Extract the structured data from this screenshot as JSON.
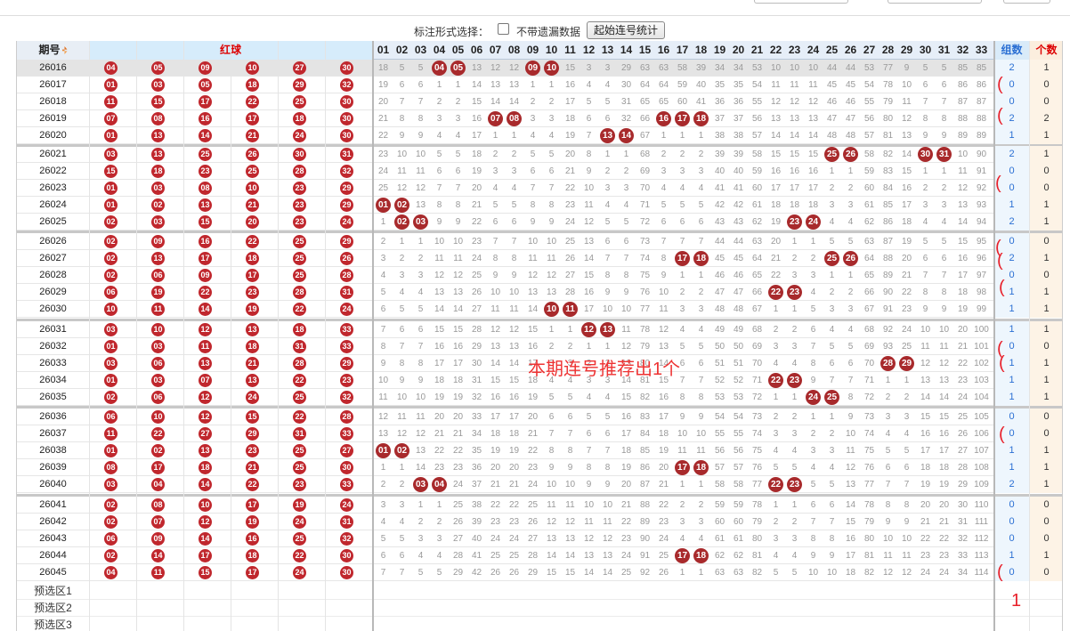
{
  "controls": {
    "label": "标注形式选择：",
    "checkbox_label": "不带遗漏数据",
    "button_label": "起始连号统计"
  },
  "header": {
    "issue": "期号",
    "red": "红球",
    "group": "组数",
    "count": "个数",
    "numbers": [
      "01",
      "02",
      "03",
      "04",
      "05",
      "06",
      "07",
      "08",
      "09",
      "10",
      "11",
      "12",
      "13",
      "14",
      "15",
      "16",
      "17",
      "18",
      "19",
      "20",
      "21",
      "22",
      "23",
      "24",
      "25",
      "26",
      "27",
      "28",
      "29",
      "30",
      "31",
      "32",
      "33"
    ]
  },
  "rows": [
    {
      "issue": "26016",
      "red": [
        "04",
        "05",
        "09",
        "10",
        "27",
        "30"
      ],
      "group": "2",
      "count": "1",
      "om": [
        18,
        5,
        5,
        0,
        0,
        13,
        12,
        12,
        0,
        0,
        15,
        3,
        3,
        29,
        63,
        63,
        58,
        39,
        34,
        34,
        53,
        10,
        10,
        10,
        44,
        44,
        53,
        77,
        9,
        5,
        5,
        85,
        85
      ]
    },
    {
      "issue": "26017",
      "red": [
        "01",
        "03",
        "05",
        "18",
        "29",
        "32"
      ],
      "group": "0",
      "count": "0",
      "om": [
        19,
        6,
        6,
        1,
        1,
        14,
        13,
        13,
        1,
        1,
        16,
        4,
        4,
        30,
        64,
        64,
        59,
        40,
        35,
        35,
        54,
        11,
        11,
        11,
        45,
        45,
        54,
        78,
        10,
        6,
        6,
        86,
        86
      ]
    },
    {
      "issue": "26018",
      "red": [
        "11",
        "15",
        "17",
        "22",
        "25",
        "30"
      ],
      "group": "0",
      "count": "0",
      "om": [
        20,
        7,
        7,
        2,
        2,
        15,
        14,
        14,
        2,
        2,
        17,
        5,
        5,
        31,
        65,
        65,
        60,
        41,
        36,
        36,
        55,
        12,
        12,
        12,
        46,
        46,
        55,
        79,
        11,
        7,
        7,
        87,
        87
      ]
    },
    {
      "issue": "26019",
      "red": [
        "07",
        "08",
        "16",
        "17",
        "18",
        "30"
      ],
      "group": "2",
      "count": "2",
      "om": [
        21,
        8,
        8,
        3,
        3,
        16,
        0,
        0,
        3,
        3,
        18,
        6,
        6,
        32,
        66,
        0,
        0,
        0,
        37,
        37,
        56,
        13,
        13,
        13,
        47,
        47,
        56,
        80,
        12,
        8,
        8,
        88,
        88
      ]
    },
    {
      "issue": "26020",
      "red": [
        "01",
        "13",
        "14",
        "21",
        "24",
        "30"
      ],
      "group": "1",
      "count": "1",
      "om": [
        22,
        9,
        9,
        4,
        4,
        17,
        1,
        1,
        4,
        4,
        19,
        7,
        0,
        0,
        67,
        1,
        1,
        1,
        38,
        38,
        57,
        14,
        14,
        14,
        48,
        48,
        57,
        81,
        13,
        9,
        9,
        89,
        89
      ]
    },
    {
      "issue": "26021",
      "red": [
        "03",
        "13",
        "25",
        "26",
        "30",
        "31"
      ],
      "group": "2",
      "count": "1",
      "om": [
        23,
        10,
        10,
        5,
        5,
        18,
        2,
        2,
        5,
        5,
        20,
        8,
        1,
        1,
        68,
        2,
        2,
        2,
        39,
        39,
        58,
        15,
        15,
        15,
        0,
        0,
        58,
        82,
        14,
        0,
        0,
        10,
        90
      ]
    },
    {
      "issue": "26022",
      "red": [
        "15",
        "18",
        "23",
        "25",
        "28",
        "32"
      ],
      "group": "0",
      "count": "0",
      "om": [
        24,
        11,
        11,
        6,
        6,
        19,
        3,
        3,
        6,
        6,
        21,
        9,
        2,
        2,
        69,
        3,
        3,
        3,
        40,
        40,
        59,
        16,
        16,
        16,
        1,
        1,
        59,
        83,
        15,
        1,
        1,
        11,
        91
      ]
    },
    {
      "issue": "26023",
      "red": [
        "01",
        "03",
        "08",
        "10",
        "23",
        "29"
      ],
      "group": "0",
      "count": "0",
      "om": [
        25,
        12,
        12,
        7,
        7,
        20,
        4,
        4,
        7,
        7,
        22,
        10,
        3,
        3,
        70,
        4,
        4,
        4,
        41,
        41,
        60,
        17,
        17,
        17,
        2,
        2,
        60,
        84,
        16,
        2,
        2,
        12,
        92
      ]
    },
    {
      "issue": "26024",
      "red": [
        "01",
        "02",
        "13",
        "21",
        "23",
        "29"
      ],
      "group": "1",
      "count": "1",
      "om": [
        0,
        0,
        13,
        8,
        8,
        21,
        5,
        5,
        8,
        8,
        23,
        11,
        4,
        4,
        71,
        5,
        5,
        5,
        42,
        42,
        61,
        18,
        18,
        18,
        3,
        3,
        61,
        85,
        17,
        3,
        3,
        13,
        93
      ]
    },
    {
      "issue": "26025",
      "red": [
        "02",
        "03",
        "15",
        "20",
        "23",
        "24"
      ],
      "group": "2",
      "count": "1",
      "om": [
        1,
        0,
        0,
        9,
        9,
        22,
        6,
        6,
        9,
        9,
        24,
        12,
        5,
        5,
        72,
        6,
        6,
        6,
        43,
        43,
        62,
        19,
        0,
        0,
        4,
        4,
        62,
        86,
        18,
        4,
        4,
        14,
        94
      ]
    },
    {
      "issue": "26026",
      "red": [
        "02",
        "09",
        "16",
        "22",
        "25",
        "29"
      ],
      "group": "0",
      "count": "0",
      "om": [
        2,
        1,
        1,
        10,
        10,
        23,
        7,
        7,
        10,
        10,
        25,
        13,
        6,
        6,
        73,
        7,
        7,
        7,
        44,
        44,
        63,
        20,
        1,
        1,
        5,
        5,
        63,
        87,
        19,
        5,
        5,
        15,
        95
      ]
    },
    {
      "issue": "26027",
      "red": [
        "02",
        "13",
        "17",
        "18",
        "25",
        "26"
      ],
      "group": "2",
      "count": "1",
      "om": [
        3,
        2,
        2,
        11,
        11,
        24,
        8,
        8,
        11,
        11,
        26,
        14,
        7,
        7,
        74,
        8,
        0,
        0,
        45,
        45,
        64,
        21,
        2,
        2,
        0,
        0,
        64,
        88,
        20,
        6,
        6,
        16,
        96
      ]
    },
    {
      "issue": "26028",
      "red": [
        "02",
        "06",
        "09",
        "17",
        "25",
        "28"
      ],
      "group": "0",
      "count": "0",
      "om": [
        4,
        3,
        3,
        12,
        12,
        25,
        9,
        9,
        12,
        12,
        27,
        15,
        8,
        8,
        75,
        9,
        1,
        1,
        46,
        46,
        65,
        22,
        3,
        3,
        1,
        1,
        65,
        89,
        21,
        7,
        7,
        17,
        97
      ]
    },
    {
      "issue": "26029",
      "red": [
        "06",
        "19",
        "22",
        "23",
        "28",
        "31"
      ],
      "group": "1",
      "count": "1",
      "om": [
        5,
        4,
        4,
        13,
        13,
        26,
        10,
        10,
        13,
        13,
        28,
        16,
        9,
        9,
        76,
        10,
        2,
        2,
        47,
        47,
        66,
        0,
        0,
        4,
        2,
        2,
        66,
        90,
        22,
        8,
        8,
        18,
        98
      ]
    },
    {
      "issue": "26030",
      "red": [
        "10",
        "11",
        "14",
        "19",
        "22",
        "24"
      ],
      "group": "1",
      "count": "1",
      "om": [
        6,
        5,
        5,
        14,
        14,
        27,
        11,
        11,
        14,
        0,
        0,
        17,
        10,
        10,
        77,
        11,
        3,
        3,
        48,
        48,
        67,
        1,
        1,
        5,
        3,
        3,
        67,
        91,
        23,
        9,
        9,
        19,
        99
      ]
    },
    {
      "issue": "26031",
      "red": [
        "03",
        "10",
        "12",
        "13",
        "18",
        "33"
      ],
      "group": "1",
      "count": "1",
      "om": [
        7,
        6,
        6,
        15,
        15,
        28,
        12,
        12,
        15,
        1,
        1,
        0,
        0,
        11,
        78,
        12,
        4,
        4,
        49,
        49,
        68,
        2,
        2,
        6,
        4,
        4,
        68,
        92,
        24,
        10,
        10,
        20,
        100
      ]
    },
    {
      "issue": "26032",
      "red": [
        "01",
        "03",
        "11",
        "18",
        "31",
        "33"
      ],
      "group": "0",
      "count": "0",
      "om": [
        8,
        7,
        7,
        16,
        16,
        29,
        13,
        13,
        16,
        2,
        2,
        1,
        1,
        12,
        79,
        13,
        5,
        5,
        50,
        50,
        69,
        3,
        3,
        7,
        5,
        5,
        69,
        93,
        25,
        11,
        11,
        21,
        101
      ]
    },
    {
      "issue": "26033",
      "red": [
        "03",
        "06",
        "13",
        "21",
        "28",
        "29"
      ],
      "group": "1",
      "count": "1",
      "om": [
        9,
        8,
        8,
        17,
        17,
        30,
        14,
        14,
        17,
        3,
        3,
        2,
        2,
        13,
        80,
        14,
        6,
        6,
        51,
        51,
        70,
        4,
        4,
        8,
        6,
        6,
        70,
        0,
        0,
        12,
        12,
        22,
        102
      ]
    },
    {
      "issue": "26034",
      "red": [
        "01",
        "03",
        "07",
        "13",
        "22",
        "23"
      ],
      "group": "1",
      "count": "1",
      "om": [
        10,
        9,
        9,
        18,
        18,
        31,
        15,
        15,
        18,
        4,
        4,
        3,
        3,
        14,
        81,
        15,
        7,
        7,
        52,
        52,
        71,
        0,
        0,
        9,
        7,
        7,
        71,
        1,
        1,
        13,
        13,
        23,
        103
      ]
    },
    {
      "issue": "26035",
      "red": [
        "02",
        "06",
        "12",
        "24",
        "25",
        "32"
      ],
      "group": "1",
      "count": "1",
      "om": [
        11,
        10,
        10,
        19,
        19,
        32,
        16,
        16,
        19,
        5,
        5,
        4,
        4,
        15,
        82,
        16,
        8,
        8,
        53,
        53,
        72,
        1,
        1,
        0,
        0,
        8,
        72,
        2,
        2,
        14,
        14,
        24,
        104
      ]
    },
    {
      "issue": "26036",
      "red": [
        "06",
        "10",
        "12",
        "15",
        "22",
        "28"
      ],
      "group": "0",
      "count": "0",
      "om": [
        12,
        11,
        11,
        20,
        20,
        33,
        17,
        17,
        20,
        6,
        6,
        5,
        5,
        16,
        83,
        17,
        9,
        9,
        54,
        54,
        73,
        2,
        2,
        1,
        1,
        9,
        73,
        3,
        3,
        15,
        15,
        25,
        105
      ]
    },
    {
      "issue": "26037",
      "red": [
        "11",
        "22",
        "27",
        "29",
        "31",
        "33"
      ],
      "group": "0",
      "count": "0",
      "om": [
        13,
        12,
        12,
        21,
        21,
        34,
        18,
        18,
        21,
        7,
        7,
        6,
        6,
        17,
        84,
        18,
        10,
        10,
        55,
        55,
        74,
        3,
        3,
        2,
        2,
        10,
        74,
        4,
        4,
        16,
        16,
        26,
        106
      ]
    },
    {
      "issue": "26038",
      "red": [
        "01",
        "02",
        "13",
        "23",
        "25",
        "27"
      ],
      "group": "1",
      "count": "1",
      "om": [
        0,
        0,
        13,
        22,
        22,
        35,
        19,
        19,
        22,
        8,
        8,
        7,
        7,
        18,
        85,
        19,
        11,
        11,
        56,
        56,
        75,
        4,
        4,
        3,
        3,
        11,
        75,
        5,
        5,
        17,
        17,
        27,
        107
      ]
    },
    {
      "issue": "26039",
      "red": [
        "08",
        "17",
        "18",
        "21",
        "25",
        "30"
      ],
      "group": "1",
      "count": "1",
      "om": [
        1,
        1,
        14,
        23,
        23,
        36,
        20,
        20,
        23,
        9,
        9,
        8,
        8,
        19,
        86,
        20,
        0,
        0,
        57,
        57,
        76,
        5,
        5,
        4,
        4,
        12,
        76,
        6,
        6,
        18,
        18,
        28,
        108
      ]
    },
    {
      "issue": "26040",
      "red": [
        "03",
        "04",
        "14",
        "22",
        "23",
        "33"
      ],
      "group": "2",
      "count": "1",
      "om": [
        2,
        2,
        0,
        0,
        24,
        37,
        21,
        21,
        24,
        10,
        10,
        9,
        9,
        20,
        87,
        21,
        1,
        1,
        58,
        58,
        77,
        0,
        0,
        5,
        5,
        13,
        77,
        7,
        7,
        19,
        19,
        29,
        109
      ]
    },
    {
      "issue": "26041",
      "red": [
        "02",
        "08",
        "10",
        "17",
        "19",
        "24"
      ],
      "group": "0",
      "count": "0",
      "om": [
        3,
        3,
        1,
        1,
        25,
        38,
        22,
        22,
        25,
        11,
        11,
        10,
        10,
        21,
        88,
        22,
        2,
        2,
        59,
        59,
        78,
        1,
        1,
        6,
        6,
        14,
        78,
        8,
        8,
        20,
        20,
        30,
        110
      ]
    },
    {
      "issue": "26042",
      "red": [
        "02",
        "07",
        "12",
        "19",
        "24",
        "31"
      ],
      "group": "0",
      "count": "0",
      "om": [
        4,
        4,
        2,
        2,
        26,
        39,
        23,
        23,
        26,
        12,
        12,
        11,
        11,
        22,
        89,
        23,
        3,
        3,
        60,
        60,
        79,
        2,
        2,
        7,
        7,
        15,
        79,
        9,
        9,
        21,
        21,
        31,
        111
      ]
    },
    {
      "issue": "26043",
      "red": [
        "06",
        "09",
        "14",
        "16",
        "25",
        "32"
      ],
      "group": "0",
      "count": "0",
      "om": [
        5,
        5,
        3,
        3,
        27,
        40,
        24,
        24,
        27,
        13,
        13,
        12,
        12,
        23,
        90,
        24,
        4,
        4,
        61,
        61,
        80,
        3,
        3,
        8,
        8,
        16,
        80,
        10,
        10,
        22,
        22,
        32,
        112
      ]
    },
    {
      "issue": "26044",
      "red": [
        "02",
        "14",
        "17",
        "18",
        "22",
        "30"
      ],
      "group": "1",
      "count": "1",
      "om": [
        6,
        6,
        4,
        4,
        28,
        41,
        25,
        25,
        28,
        14,
        14,
        13,
        13,
        24,
        91,
        25,
        0,
        0,
        62,
        62,
        81,
        4,
        4,
        9,
        9,
        17,
        81,
        11,
        11,
        23,
        23,
        33,
        113
      ]
    },
    {
      "issue": "26045",
      "red": [
        "04",
        "11",
        "15",
        "17",
        "24",
        "30"
      ],
      "group": "0",
      "count": "0",
      "om": [
        7,
        7,
        5,
        5,
        29,
        42,
        26,
        26,
        29,
        15,
        15,
        14,
        14,
        25,
        92,
        26,
        1,
        1,
        63,
        63,
        82,
        5,
        5,
        10,
        10,
        18,
        82,
        12,
        12,
        24,
        24,
        34,
        114
      ]
    }
  ],
  "hits": [
    [
      4,
      5,
      9,
      10
    ],
    [],
    [],
    [
      7,
      8,
      16,
      17,
      18
    ],
    [
      13,
      14
    ],
    [
      25,
      26,
      30,
      31
    ],
    [],
    [],
    [
      1,
      2
    ],
    [
      2,
      3,
      23,
      24
    ],
    [],
    [
      17,
      18,
      25,
      26
    ],
    [],
    [
      22,
      23
    ],
    [
      10,
      11
    ],
    [
      12,
      13
    ],
    [],
    [
      28,
      29
    ],
    [
      22,
      23
    ],
    [
      24,
      25
    ],
    [],
    [],
    [
      1,
      2
    ],
    [
      17,
      18
    ],
    [
      3,
      4,
      22,
      23
    ],
    [],
    [],
    [],
    [
      17,
      18
    ],
    []
  ],
  "preselect": [
    "预选区1",
    "预选区2",
    "预选区3"
  ],
  "annotation": "本期连号推荐出1个",
  "handmarks": [
    "(",
    "(",
    "(",
    "(",
    "(",
    "(",
    "(",
    "(",
    "(",
    "(",
    "1"
  ]
}
